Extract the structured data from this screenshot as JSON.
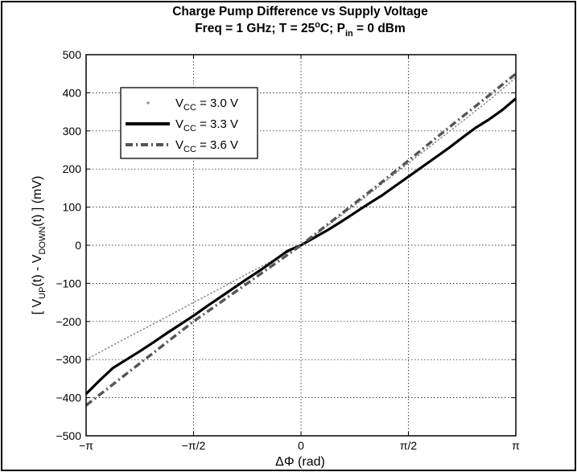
{
  "chart_data": {
    "type": "line",
    "title": {
      "line1": "Charge Pump Difference vs Supply Voltage",
      "freq": "Freq = 1 GHz; T = 25",
      "deg": "o",
      "degC": "C; P",
      "pin_sub": "in",
      "pin_val": " = 0 dBm"
    },
    "xlabel": "ΔΦ (rad)",
    "ylabel": {
      "open": "[ V",
      "up_sub": "UP",
      "mid": "(t) - V",
      "down_sub": "DOWN",
      "close": "(t) ] (mV)"
    },
    "x_ticks": [
      {
        "value": -3.1416,
        "label": "−π"
      },
      {
        "value": -1.5708,
        "label": "−π/2"
      },
      {
        "value": 0,
        "label": "0"
      },
      {
        "value": 1.5708,
        "label": "π/2"
      },
      {
        "value": 3.1416,
        "label": "π"
      }
    ],
    "y_ticks": [
      {
        "value": -500,
        "label": "−500"
      },
      {
        "value": -400,
        "label": "−400"
      },
      {
        "value": -300,
        "label": "−300"
      },
      {
        "value": -200,
        "label": "−200"
      },
      {
        "value": -100,
        "label": "−100"
      },
      {
        "value": 0,
        "label": "0"
      },
      {
        "value": 100,
        "label": "100"
      },
      {
        "value": 200,
        "label": "200"
      },
      {
        "value": 300,
        "label": "300"
      },
      {
        "value": 400,
        "label": "400"
      },
      {
        "value": 500,
        "label": "500"
      }
    ],
    "xlim": [
      -3.1416,
      3.1416
    ],
    "ylim": [
      -500,
      500
    ],
    "grid": true,
    "legend_position": "top-left",
    "series": [
      {
        "name_main": "V",
        "name_sub": "CC",
        "name_rest": " = 3.0 V",
        "style": "dotted",
        "color": "#8a8a8a",
        "x": [
          -3.1416,
          -2.7489,
          -2.3562,
          -1.9635,
          -1.5708,
          -1.1781,
          -0.7854,
          -0.3927,
          0,
          0.3927,
          0.7854,
          1.1781,
          1.5708,
          1.9635,
          2.3562,
          2.7489,
          3.1416
        ],
        "y": [
          -300,
          -262,
          -225,
          -188,
          -150,
          -113,
          -75,
          -38,
          0,
          52,
          105,
          160,
          215,
          270,
          325,
          380,
          440
        ]
      },
      {
        "name_main": "V",
        "name_sub": "CC",
        "name_rest": " = 3.3 V",
        "style": "solid",
        "color": "#000000",
        "x": [
          -3.1416,
          -2.9452,
          -2.7489,
          -2.5525,
          -2.3562,
          -2.1598,
          -1.9635,
          -1.7671,
          -1.5708,
          -1.3744,
          -1.1781,
          -0.9817,
          -0.7854,
          -0.589,
          -0.3927,
          -0.1963,
          0,
          0.1963,
          0.3927,
          0.589,
          0.7854,
          0.9817,
          1.1781,
          1.3744,
          1.5708,
          1.7671,
          1.9635,
          2.1598,
          2.3562,
          2.5525,
          2.7489,
          2.9452,
          3.1416
        ],
        "y": [
          -390,
          -355,
          -322,
          -300,
          -278,
          -255,
          -231,
          -208,
          -185,
          -160,
          -136,
          -112,
          -88,
          -65,
          -40,
          -15,
          0,
          20,
          40,
          62,
          85,
          108,
          130,
          155,
          180,
          205,
          230,
          255,
          282,
          308,
          330,
          355,
          385
        ]
      },
      {
        "name_main": "V",
        "name_sub": "CC",
        "name_rest": " = 3.6 V",
        "style": "dashdot",
        "color": "#555555",
        "x": [
          -3.1416,
          -2.7489,
          -2.3562,
          -1.9635,
          -1.5708,
          -1.1781,
          -0.7854,
          -0.3927,
          0,
          0.3927,
          0.7854,
          1.1781,
          1.5708,
          1.9635,
          2.3562,
          2.7489,
          3.1416
        ],
        "y": [
          -420,
          -365,
          -310,
          -255,
          -200,
          -150,
          -100,
          -50,
          0,
          55,
          110,
          165,
          222,
          280,
          337,
          393,
          450
        ]
      }
    ]
  }
}
